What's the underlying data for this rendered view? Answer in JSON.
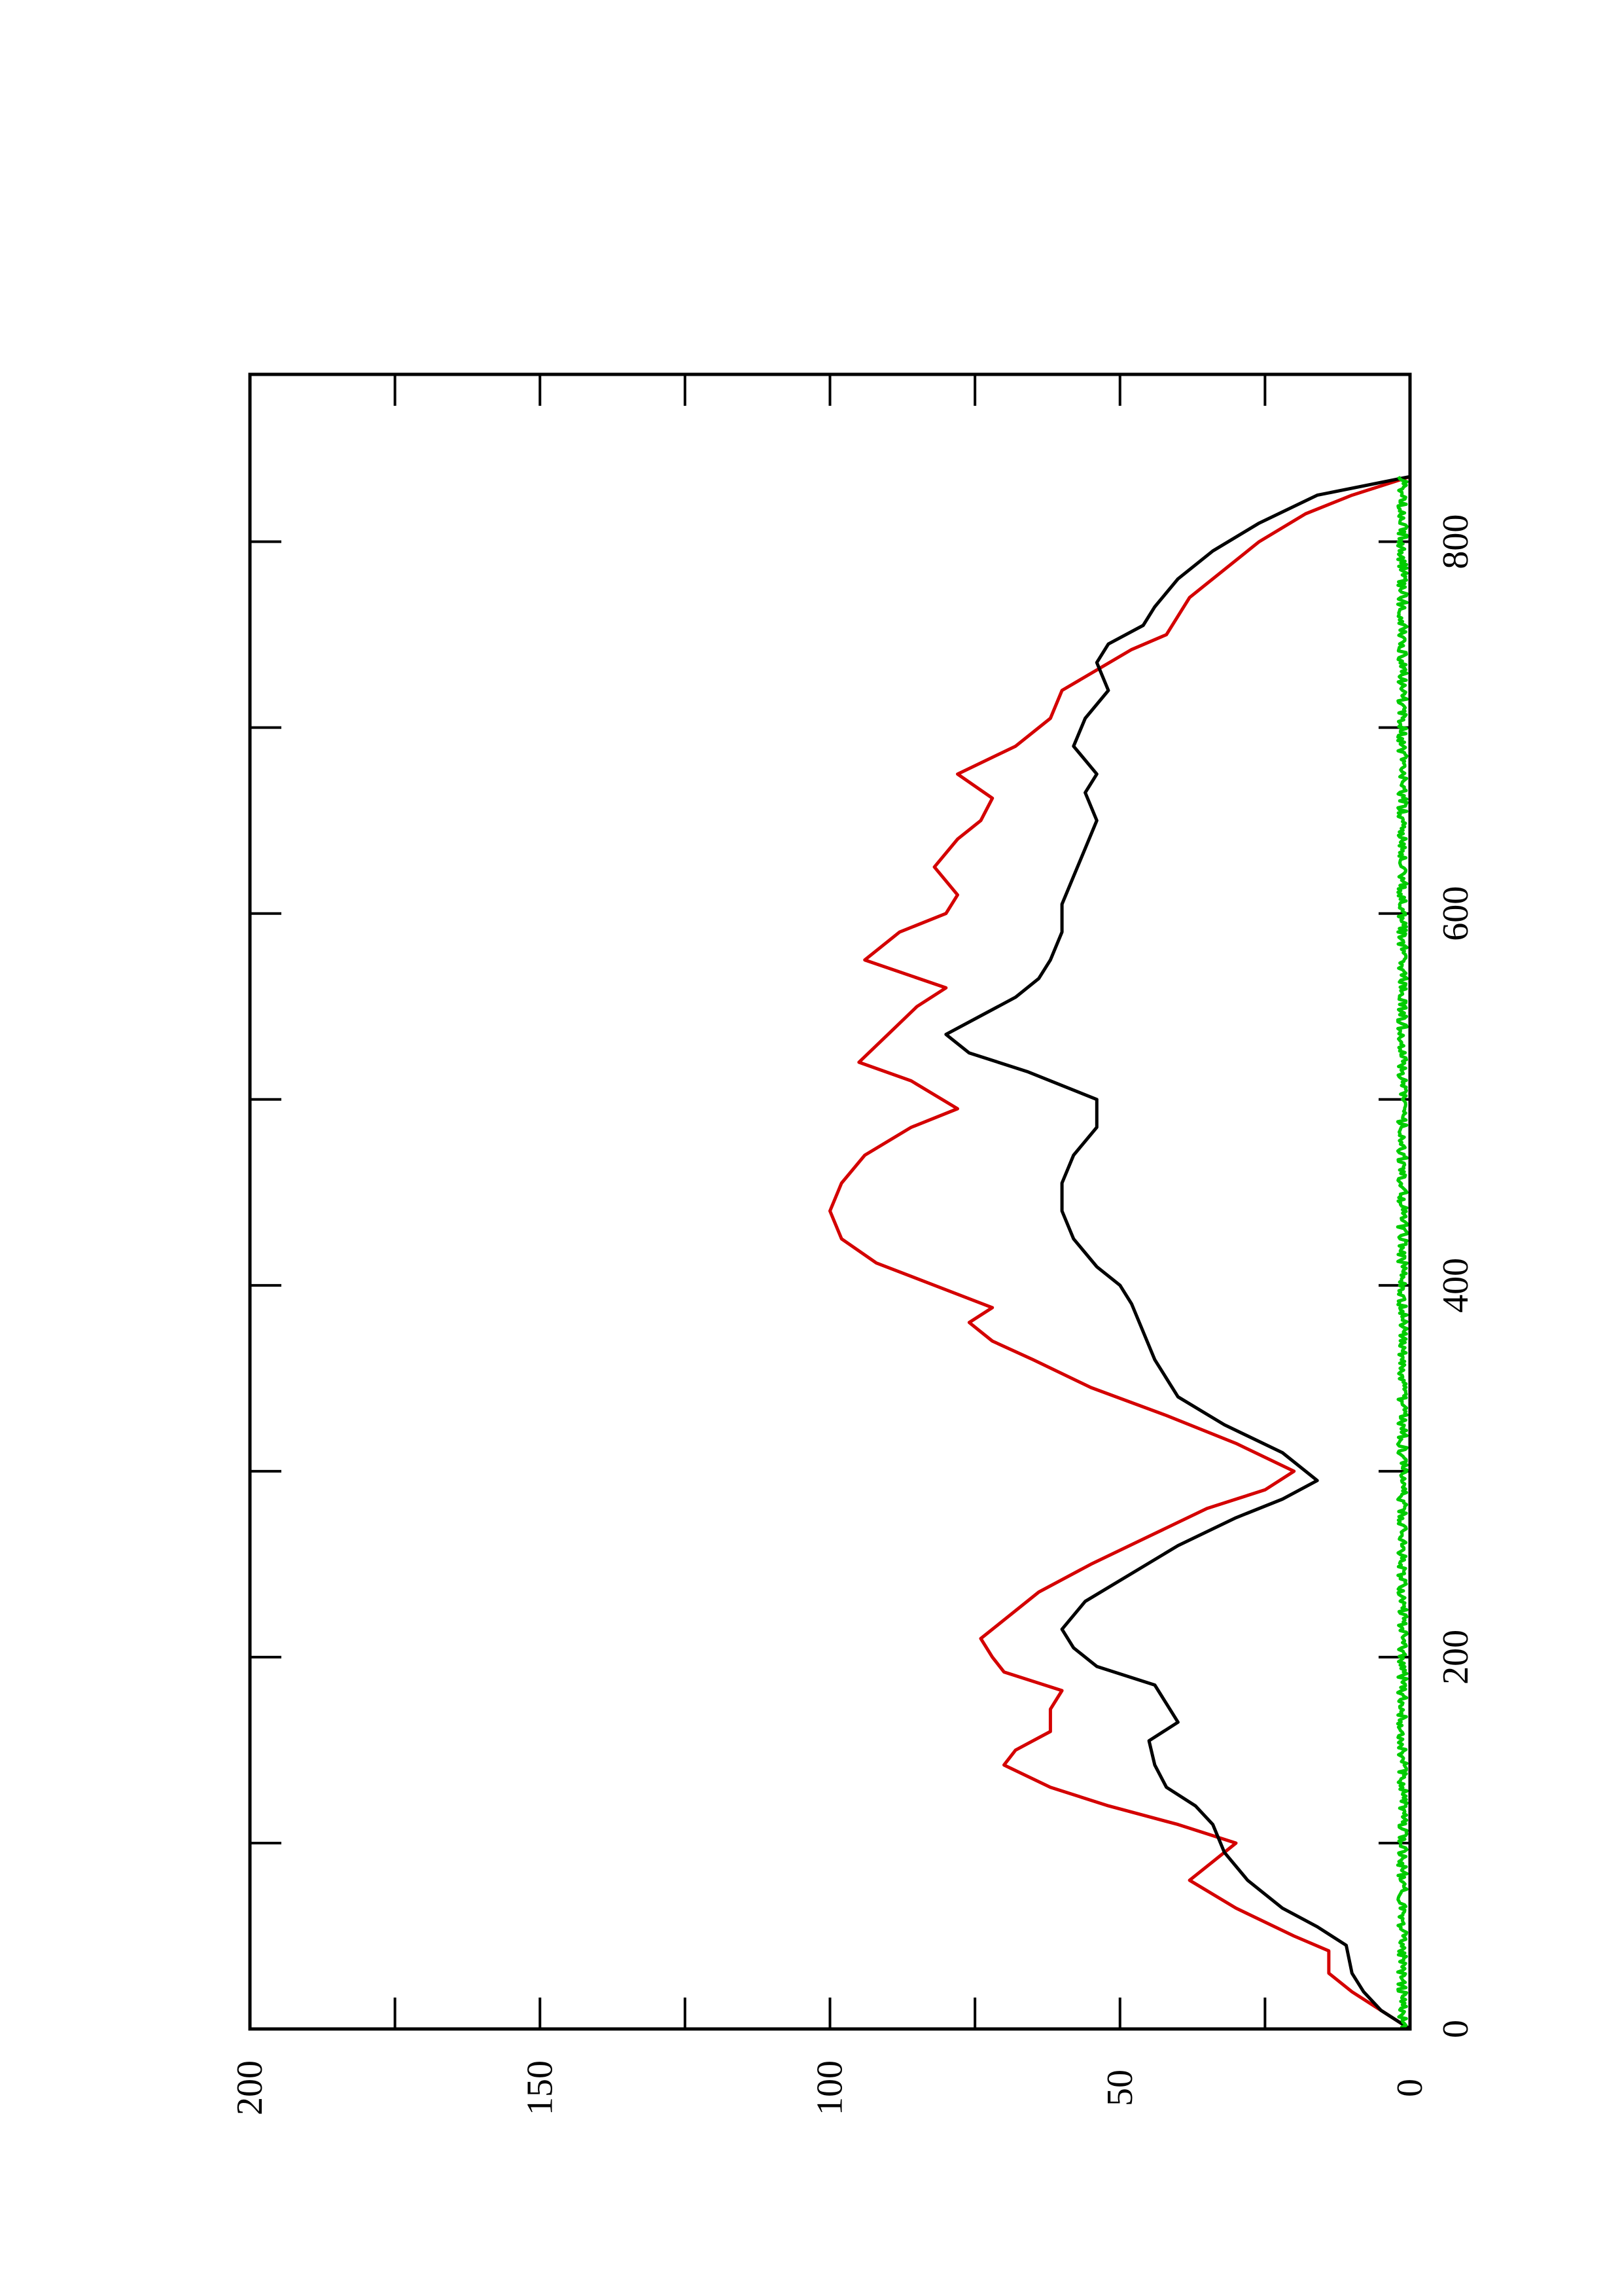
{
  "chart_data": {
    "type": "line",
    "title": "",
    "xlabel": "",
    "ylabel": "",
    "xlim": [
      0,
      890
    ],
    "ylim": [
      0,
      200
    ],
    "x_ticks": [
      0,
      200,
      400,
      600,
      800
    ],
    "y_ticks": [
      0,
      50,
      100,
      150,
      200
    ],
    "x_minor_ticks": [
      100,
      300,
      500,
      700
    ],
    "y_minor_ticks": [
      25,
      75,
      125,
      175
    ],
    "orientation": "rotated 90 degrees counter-clockwise",
    "grid": false,
    "legend": "none",
    "series": [
      {
        "color": "#d40000",
        "x": [
          0,
          10,
          20,
          30,
          42,
          50,
          65,
          80,
          90,
          100,
          110,
          120,
          130,
          142,
          150,
          160,
          172,
          182,
          192,
          200,
          210,
          220,
          235,
          250,
          265,
          280,
          290,
          300,
          315,
          330,
          345,
          360,
          370,
          380,
          388,
          400,
          412,
          425,
          440,
          455,
          470,
          485,
          495,
          510,
          520,
          535,
          550,
          560,
          575,
          590,
          600,
          610,
          625,
          640,
          650,
          662,
          675,
          690,
          705,
          720,
          742,
          750,
          760,
          770,
          780,
          800,
          815,
          825,
          835
        ],
        "y": [
          0,
          5,
          10,
          14,
          14,
          20,
          30,
          38,
          34,
          30,
          40,
          52,
          62,
          70,
          68,
          62,
          62,
          60,
          70,
          72,
          74,
          70,
          64,
          55,
          45,
          35,
          25,
          20,
          30,
          42,
          55,
          65,
          72,
          76,
          72,
          82,
          92,
          98,
          100,
          98,
          94,
          86,
          78,
          86,
          95,
          90,
          85,
          80,
          94,
          88,
          80,
          78,
          82,
          78,
          74,
          72,
          78,
          68,
          62,
          60,
          48,
          42,
          40,
          38,
          34,
          26,
          18,
          10,
          0
        ]
      },
      {
        "color": "#000000",
        "x": [
          0,
          10,
          20,
          30,
          45,
          55,
          65,
          80,
          95,
          110,
          120,
          130,
          142,
          155,
          165,
          175,
          185,
          195,
          205,
          215,
          230,
          245,
          260,
          275,
          285,
          295,
          310,
          325,
          340,
          360,
          375,
          390,
          400,
          410,
          425,
          440,
          455,
          470,
          485,
          500,
          515,
          525,
          535,
          545,
          555,
          565,
          575,
          590,
          605,
          620,
          635,
          650,
          665,
          675,
          690,
          705,
          720,
          735,
          745,
          755,
          765,
          780,
          795,
          810,
          825,
          835
        ],
        "y": [
          0,
          5,
          8,
          10,
          11,
          16,
          22,
          28,
          32,
          34,
          37,
          42,
          44,
          45,
          40,
          42,
          44,
          54,
          58,
          60,
          56,
          48,
          40,
          30,
          22,
          16,
          22,
          32,
          40,
          44,
          46,
          48,
          50,
          54,
          58,
          60,
          60,
          58,
          54,
          54,
          66,
          76,
          80,
          74,
          68,
          64,
          62,
          60,
          60,
          58,
          56,
          54,
          56,
          54,
          58,
          56,
          52,
          54,
          52,
          46,
          44,
          40,
          34,
          26,
          16,
          0
        ]
      },
      {
        "color": "#00cc00",
        "x": [
          0,
          835
        ],
        "y": [
          1,
          1
        ]
      }
    ]
  }
}
